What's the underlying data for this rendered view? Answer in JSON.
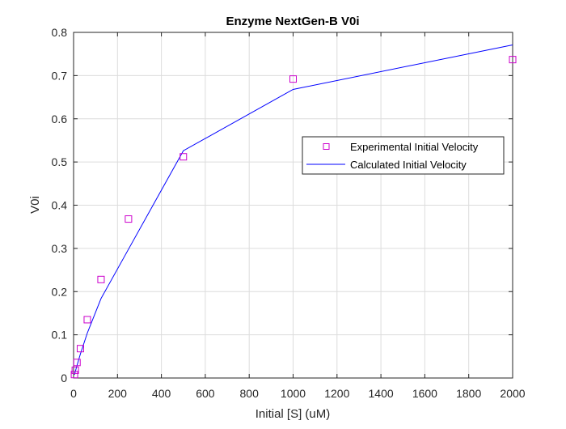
{
  "chart_data": {
    "type": "line",
    "title": "Enzyme NextGen-B V0i",
    "xlabel": "Initial [S] (uM)",
    "ylabel": "V0i",
    "xlim": [
      0,
      2000
    ],
    "ylim": [
      0,
      0.8
    ],
    "xticks": [
      0,
      200,
      400,
      600,
      800,
      1000,
      1200,
      1400,
      1600,
      1800,
      2000
    ],
    "xtick_labels": [
      "0",
      "200",
      "400",
      "600",
      "800",
      "1000",
      "1200",
      "1400",
      "1600",
      "1800",
      "2000"
    ],
    "yticks": [
      0,
      0.1,
      0.2,
      0.3,
      0.4,
      0.5,
      0.6,
      0.7,
      0.8
    ],
    "ytick_labels": [
      "0",
      "0.1",
      "0.2",
      "0.3",
      "0.4",
      "0.5",
      "0.6",
      "0.7",
      "0.8"
    ],
    "grid": true,
    "legend_position": "right",
    "series": [
      {
        "name": "Experimental Initial Velocity",
        "kind": "scatter",
        "marker": "square",
        "color": "#cc00cc",
        "x": [
          3.9,
          7.8,
          15.6,
          31.25,
          62.5,
          125,
          250,
          500,
          1000,
          2000
        ],
        "y": [
          0.008,
          0.018,
          0.036,
          0.068,
          0.135,
          0.228,
          0.368,
          0.512,
          0.692,
          0.737
        ]
      },
      {
        "name": "Calculated Initial Velocity",
        "kind": "line",
        "color": "#0000ff",
        "x": [
          3.9,
          7.8,
          15.6,
          31.25,
          62.5,
          125,
          250,
          500,
          1000,
          2000
        ],
        "y": [
          0.0075,
          0.0148,
          0.029,
          0.056,
          0.104,
          0.184,
          0.298,
          0.526,
          0.668,
          0.771
        ]
      }
    ]
  }
}
